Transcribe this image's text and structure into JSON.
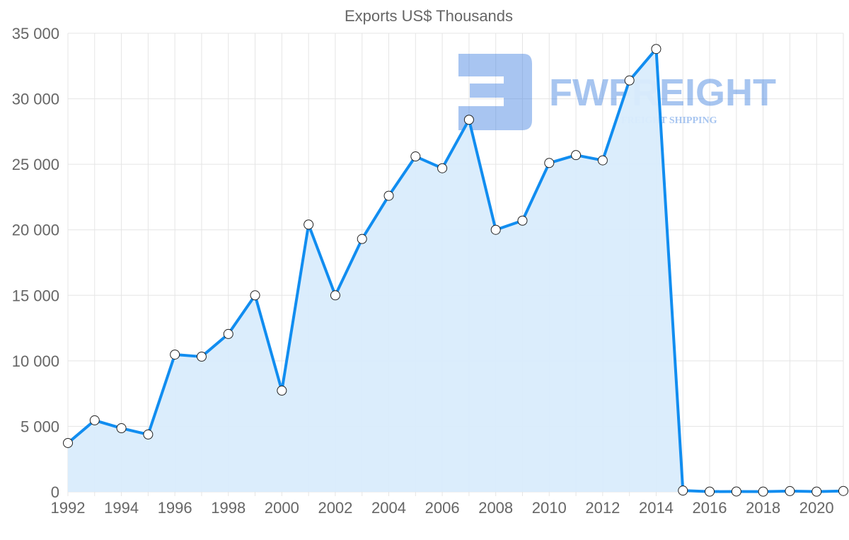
{
  "chart_data": {
    "type": "area",
    "title": "Exports US$ Thousands",
    "xlabel": "",
    "ylabel": "",
    "ylim": [
      0,
      35000
    ],
    "yticks": [
      0,
      5000,
      10000,
      15000,
      20000,
      25000,
      30000,
      35000
    ],
    "ytick_labels": [
      "0",
      "5 000",
      "10 000",
      "15 000",
      "20 000",
      "25 000",
      "30 000",
      "35 000"
    ],
    "xtick_labels": [
      "1992",
      "1994",
      "1996",
      "1998",
      "2000",
      "2002",
      "2004",
      "2006",
      "2008",
      "2010",
      "2012",
      "2014",
      "2016",
      "2018",
      "2020"
    ],
    "grid": true,
    "x": [
      1992,
      1993,
      1994,
      1995,
      1996,
      1997,
      1998,
      1999,
      2000,
      2001,
      2002,
      2003,
      2004,
      2005,
      2006,
      2007,
      2008,
      2009,
      2010,
      2011,
      2012,
      2013,
      2014,
      2015,
      2016,
      2017,
      2018,
      2019,
      2020,
      2021
    ],
    "series": [
      {
        "name": "Exports US$ Thousands",
        "values": [
          3730,
          5460,
          4860,
          4380,
          10480,
          10320,
          12050,
          15000,
          7730,
          20400,
          15000,
          19300,
          22600,
          25600,
          24700,
          28400,
          20000,
          20700,
          25100,
          25700,
          25300,
          31400,
          33800,
          100,
          20,
          30,
          20,
          60,
          20,
          70
        ],
        "color": "#118df0",
        "fill": "#d9ecfc"
      }
    ]
  },
  "watermark": {
    "brand": "FWFREIGHT",
    "tagline": "FREIGHT SHIPPING"
  }
}
